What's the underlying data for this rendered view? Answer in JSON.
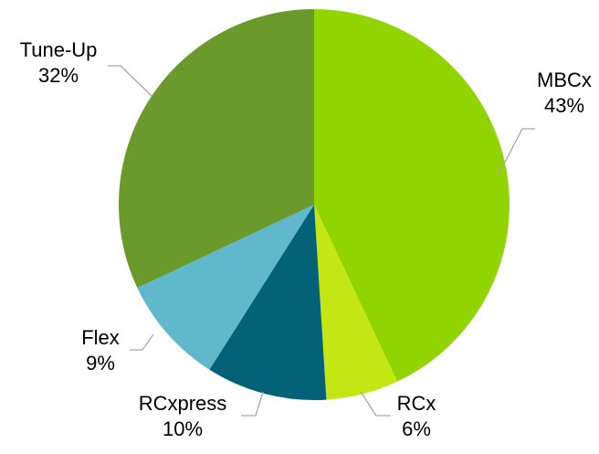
{
  "chart_data": {
    "type": "pie",
    "title": "",
    "slices": [
      {
        "name": "MBCx",
        "value": 43,
        "label": "43%",
        "color": "#92d400"
      },
      {
        "name": "RCx",
        "value": 6,
        "label": "6%",
        "color": "#c4e612"
      },
      {
        "name": "RCxpress",
        "value": 10,
        "label": "10%",
        "color": "#046278"
      },
      {
        "name": "Flex",
        "value": 9,
        "label": "9%",
        "color": "#5fb8cc"
      },
      {
        "name": "Tune-Up",
        "value": 32,
        "label": "32%",
        "color": "#6a9a2c"
      }
    ],
    "start_angle": "12 o'clock",
    "direction": "clockwise",
    "legend": "none",
    "data_labels": "outside with leader lines"
  }
}
